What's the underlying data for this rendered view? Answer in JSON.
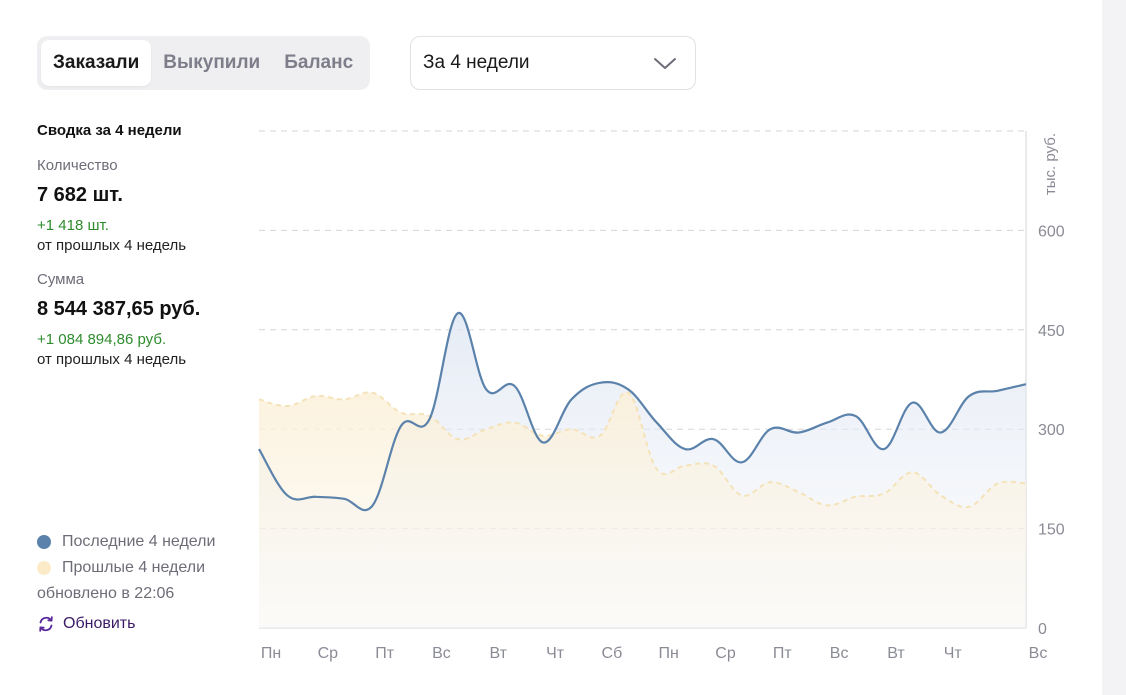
{
  "tabs": [
    {
      "label": "Заказали",
      "active": true
    },
    {
      "label": "Выкупили",
      "active": false
    },
    {
      "label": "Баланс",
      "active": false
    }
  ],
  "period_select": {
    "value": "За 4 недели",
    "icon": "chevron-down-icon"
  },
  "summary": {
    "title": "Сводка за 4 недели",
    "quantity": {
      "label": "Количество",
      "value": "7 682 шт.",
      "delta": "+1 418 шт.",
      "delta_sub": "от прошлых 4 недель"
    },
    "sum": {
      "label": "Сумма",
      "value": "8 544 387,65 руб.",
      "delta": "+1 084 894,86 руб.",
      "delta_sub": "от прошлых 4 недель"
    }
  },
  "legend": {
    "current": {
      "label": "Последние 4 недели",
      "color": "#5b82ab"
    },
    "previous": {
      "label": "Прошлые 4 недели",
      "color": "#fcebc8"
    }
  },
  "updated_text": "обновлено в 22:06",
  "refresh_label": "Обновить",
  "colors": {
    "delta_positive": "#2e8b2e",
    "current_line": "#5b82ab",
    "current_fill": "#e8edf6",
    "previous_fill": "#fcf0d8",
    "previous_line": "#f4e2b8"
  },
  "chart_data": {
    "type": "area",
    "unit_label": "тыс. руб.",
    "ylim": [
      0,
      750
    ],
    "y_ticks": [
      0,
      150,
      300,
      450,
      600
    ],
    "grid": true,
    "x_tick_labels": [
      "Пн",
      "Ср",
      "Пт",
      "Вс",
      "Вт",
      "Чт",
      "Сб",
      "Пн",
      "Ср",
      "Пт",
      "Вс",
      "Вт",
      "Чт",
      "Вс"
    ],
    "x_tick_days": [
      0,
      2,
      4,
      6,
      8,
      10,
      12,
      14,
      16,
      18,
      20,
      22,
      24,
      27
    ],
    "series": [
      {
        "name": "Последние 4 недели",
        "values": [
          270,
          200,
          198,
          195,
          185,
          305,
          315,
          475,
          360,
          365,
          280,
          345,
          370,
          360,
          310,
          270,
          285,
          250,
          300,
          295,
          310,
          320,
          270,
          340,
          295,
          350,
          358,
          368
        ]
      },
      {
        "name": "Прошлые 4 недели",
        "values": [
          345,
          335,
          350,
          345,
          355,
          325,
          320,
          285,
          300,
          310,
          290,
          300,
          290,
          355,
          240,
          245,
          245,
          200,
          220,
          205,
          185,
          198,
          203,
          235,
          200,
          183,
          218,
          218
        ]
      }
    ]
  }
}
